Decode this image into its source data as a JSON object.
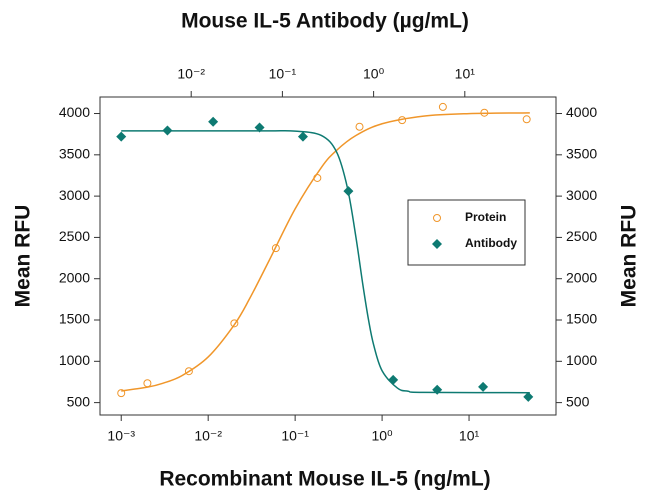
{
  "chart_data": {
    "type": "scatter",
    "xlabel": "Recombinant Mouse IL-5 (ng/mL)",
    "x2label": "Mouse IL-5 Antibody (µg/mL)",
    "ylabel": "Mean RFU",
    "y2label": "Mean RFU",
    "xscale": "log",
    "xlim": [
      0.00057,
      100
    ],
    "xticks": [
      {
        "value": 0.001,
        "label": "10⁻³"
      },
      {
        "value": 0.01,
        "label": "10⁻²"
      },
      {
        "value": 0.1,
        "label": "10⁻¹"
      },
      {
        "value": 1,
        "label": "10⁰"
      },
      {
        "value": 10,
        "label": "10¹"
      }
    ],
    "x2lim": [
      0.001,
      100
    ],
    "x2ticks": [
      {
        "value": 0.01,
        "label": "10⁻²"
      },
      {
        "value": 0.1,
        "label": "10⁻¹"
      },
      {
        "value": 1,
        "label": "10⁰"
      },
      {
        "value": 10,
        "label": "10¹"
      }
    ],
    "ylim": [
      350,
      4200
    ],
    "yticks": [
      500,
      1000,
      1500,
      2000,
      2500,
      3000,
      3500,
      4000
    ],
    "y2lim": [
      350,
      4200
    ],
    "y2ticks": [
      500,
      1000,
      1500,
      2000,
      2500,
      3000,
      3500,
      4000
    ],
    "legend": "right",
    "series": [
      {
        "name": "Protein",
        "color": "#f0962a",
        "marker": "circle",
        "x": [
          0.001,
          0.002,
          0.006,
          0.02,
          0.06,
          0.18,
          0.55,
          1.7,
          5,
          15,
          46
        ],
        "values": [
          615,
          735,
          880,
          1460,
          2370,
          3220,
          3840,
          3920,
          4080,
          4010,
          3930
        ],
        "fit": {
          "x": [
            0.001,
            0.002,
            0.003,
            0.005,
            0.01,
            0.02,
            0.03,
            0.05,
            0.1,
            0.2,
            0.3,
            0.5,
            1,
            3,
            10,
            50
          ],
          "values": [
            641,
            687,
            734,
            827,
            1053,
            1444,
            1760,
            2216,
            2846,
            3346,
            3555,
            3734,
            3876,
            3969,
            3999,
            4008
          ]
        }
      },
      {
        "name": "Antibody",
        "color": "#0e7a72",
        "marker": "diamond",
        "x": [
          0.001,
          0.0034,
          0.0114,
          0.039,
          0.123,
          0.41,
          1.34,
          4.3,
          14.5,
          48
        ],
        "values": [
          3720,
          3795,
          3900,
          3830,
          3720,
          3060,
          775,
          655,
          690,
          570
        ],
        "fit": {
          "x": [
            0.001,
            0.01,
            0.05,
            0.1,
            0.2,
            0.3,
            0.4,
            0.5,
            0.6,
            0.7,
            0.8,
            1,
            1.5,
            2,
            3,
            50
          ],
          "values": [
            3790,
            3790,
            3790,
            3787,
            3735,
            3533,
            3097,
            2504,
            1932,
            1495,
            1198,
            886,
            676,
            638,
            624,
            620
          ]
        }
      }
    ]
  }
}
